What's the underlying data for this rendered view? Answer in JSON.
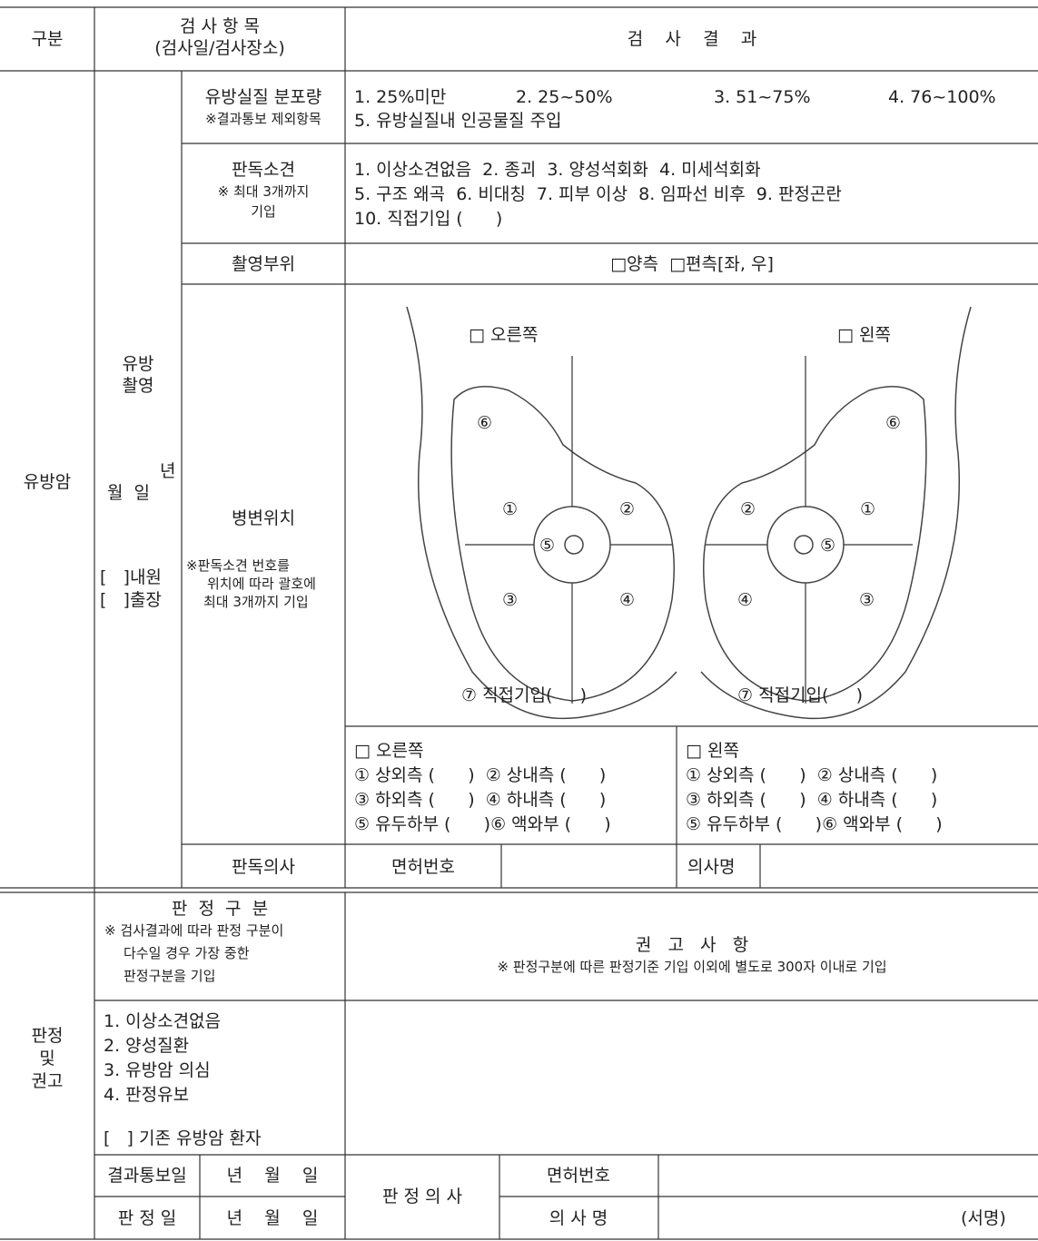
{
  "header": {
    "category": "구분",
    "item_title": "검 사 항 목",
    "item_sub": "(검사일/검사장소)",
    "result": "검    사    결    과"
  },
  "breast": {
    "label": "유방암",
    "sub_title": [
      "유방",
      "촬영"
    ],
    "date": [
      "년",
      "월  일"
    ],
    "place": [
      "[   ]내원",
      "[   ]출장"
    ],
    "density": {
      "title": "유방실질 분포량",
      "note": "※결과통보 제외항목",
      "options": [
        "1. 25%미만",
        "2. 25~50%",
        "3. 51~75%",
        "4. 76~100%",
        "5. 유방실질내 인공물질 주입"
      ]
    },
    "findings": {
      "title": "판독소견",
      "note": [
        "※ 최대 3개까지",
        "기입"
      ],
      "lines": [
        "1. 이상소견없음  2. 종괴  3. 양성석회화  4. 미세석회화",
        "5. 구조 왜곡  6. 비대칭  7. 피부 이상  8. 임파선 비후  9. 판정곤란",
        "10. 직접기입 (      )"
      ]
    },
    "site": {
      "title": "촬영부위",
      "value": "□양측  □편측[좌, 우]"
    },
    "lesion": {
      "title": "병변위치",
      "note": [
        "※판독소견 번호를",
        "위치에 따라 괄호에",
        "최대 3개까지 기입"
      ],
      "diagram": [
        "□ 오른쪽",
        "□ 왼쪽",
        "⑥",
        "①",
        "②",
        "⑤",
        "③",
        "④",
        "⑥",
        "②",
        "①",
        "⑤",
        "④",
        "③",
        "⑦ 직접기입(     )",
        "⑦ 직접기입(     )"
      ],
      "right": {
        "title": "□ 오른쪽",
        "rows": [
          "① 상외측 (      )  ② 상내측 (      )",
          "③ 하외측 (      )  ④ 하내측 (      )",
          "⑤ 유두하부 (      )⑥ 액와부 (      )"
        ]
      },
      "left": {
        "title": "□ 왼쪽",
        "rows": [
          "① 상외측 (      )  ② 상내측 (      )",
          "③ 하외측 (      )  ④ 하내측 (      )",
          "⑤ 유두하부 (      )⑥ 액와부 (      )"
        ]
      }
    },
    "reader": {
      "title": "판독의사",
      "license": "면허번호",
      "name": "의사명"
    }
  },
  "judgment": {
    "label": [
      "판정",
      "및",
      "권고"
    ],
    "class_title": "판  정  구  분",
    "class_note": [
      "※ 검사결과에 따라 판정 구분이",
      "다수일 경우 가장 중한",
      "판정구분을 기입"
    ],
    "rec_title": "권   고   사   항",
    "rec_note": "※ 판정구분에 따른 판정기준 기입 이외에 별도로 300자 이내로 기입",
    "options": [
      "1. 이상소견없음",
      "2. 양성질환",
      "3. 유방암 의심",
      "4. 판정유보",
      "[   ] 기존 유방암 환자"
    ],
    "notify_date": "결과통보일",
    "notify_ymd": "년    월    일",
    "judge_date": "판 정 일",
    "judge_ymd": "년    월    일",
    "judge_doctor": "판 정 의 사",
    "license": "면허번호",
    "doctor_name": "의 사 명",
    "sign": "(서명)"
  }
}
